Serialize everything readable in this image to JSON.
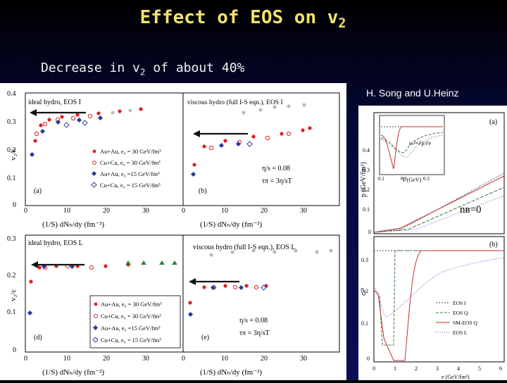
{
  "header": {
    "title_main": "Effect of EOS on v",
    "title_sub": "2",
    "subtitle_main": "Decrease in v",
    "subtitle_sub": "2",
    "subtitle_rest": " of about 40%",
    "credit": "H. Song and U.Heinz"
  },
  "left_figure": {
    "panel_a": {
      "title": "ideal hydro, EOS I",
      "label": "(a)",
      "legend": [
        "Au+Au, e₀ = 30 GeV/fm³",
        "Cu+Cu, e₀ = 30 GeV/fm³",
        "Au+Au, e₀ =15 GeV/fm³",
        "Cu+Cu, e₀ = 15 GeV/fm³"
      ]
    },
    "panel_b": {
      "title": "viscous hydro (full I-S eqn.), EOS I",
      "label": "(b)",
      "note1": "η/s = 0.08",
      "note2": "τπ = 3η/sT"
    },
    "panel_d": {
      "title": "ideal hydro, EOS L",
      "label": "(d)",
      "legend": [
        "Au+Au, e₀ = 30 GeV/fm³",
        "Cu+Cu, e₀ = 30 GeV/fm³",
        "Au+Au, e₀ =15 GeV/fm³",
        "Cu+Cu, e₀ = 15 GeV/fm³"
      ]
    },
    "panel_e": {
      "title": "viscous hydro (full I-S eqn.), EOS L",
      "label": "(e)",
      "note1": "η/s = 0.08",
      "note2": "τπ = 3η/sT"
    },
    "ylabel": "v₂/ε",
    "xlabel": "(1/S) dNₕ/dy   (fm⁻²)",
    "yticks_top": [
      "0.4",
      "0.3",
      "0.2",
      "0.1",
      "0"
    ],
    "yticks_bottom": [
      "0.3",
      "0.2",
      "0.1",
      "0"
    ],
    "xticks": [
      "0",
      "10",
      "20",
      "30"
    ]
  },
  "right_figure": {
    "panel_a_label": "(a)",
    "panel_b_label": "(b)",
    "ylabel_top": "p (GeV/fm³)",
    "ylabel_bottom": "cₛ²",
    "nb": "nʙ=0",
    "inset_formula": "cₛ²=∂p/∂e",
    "inset_xlabel": "T (GeV)",
    "xlabel": "e (GeV/fm³)",
    "yticks_top": [
      "0.4",
      "0.3",
      "0.2",
      "0.1",
      "0"
    ],
    "yticks_bottom": [
      "0.3",
      "0.2",
      "0.1",
      "0"
    ],
    "xticks": [
      "0",
      "1",
      "2",
      "3",
      "4",
      "5",
      "6"
    ],
    "legend": [
      "EOS I",
      "EOS Q",
      "SM-EOS Q",
      "EOS L"
    ]
  },
  "colors": {
    "title": "#f2e36a",
    "au30": "#e02020",
    "au15": "#2a3a9a",
    "arrow": "#111111"
  }
}
